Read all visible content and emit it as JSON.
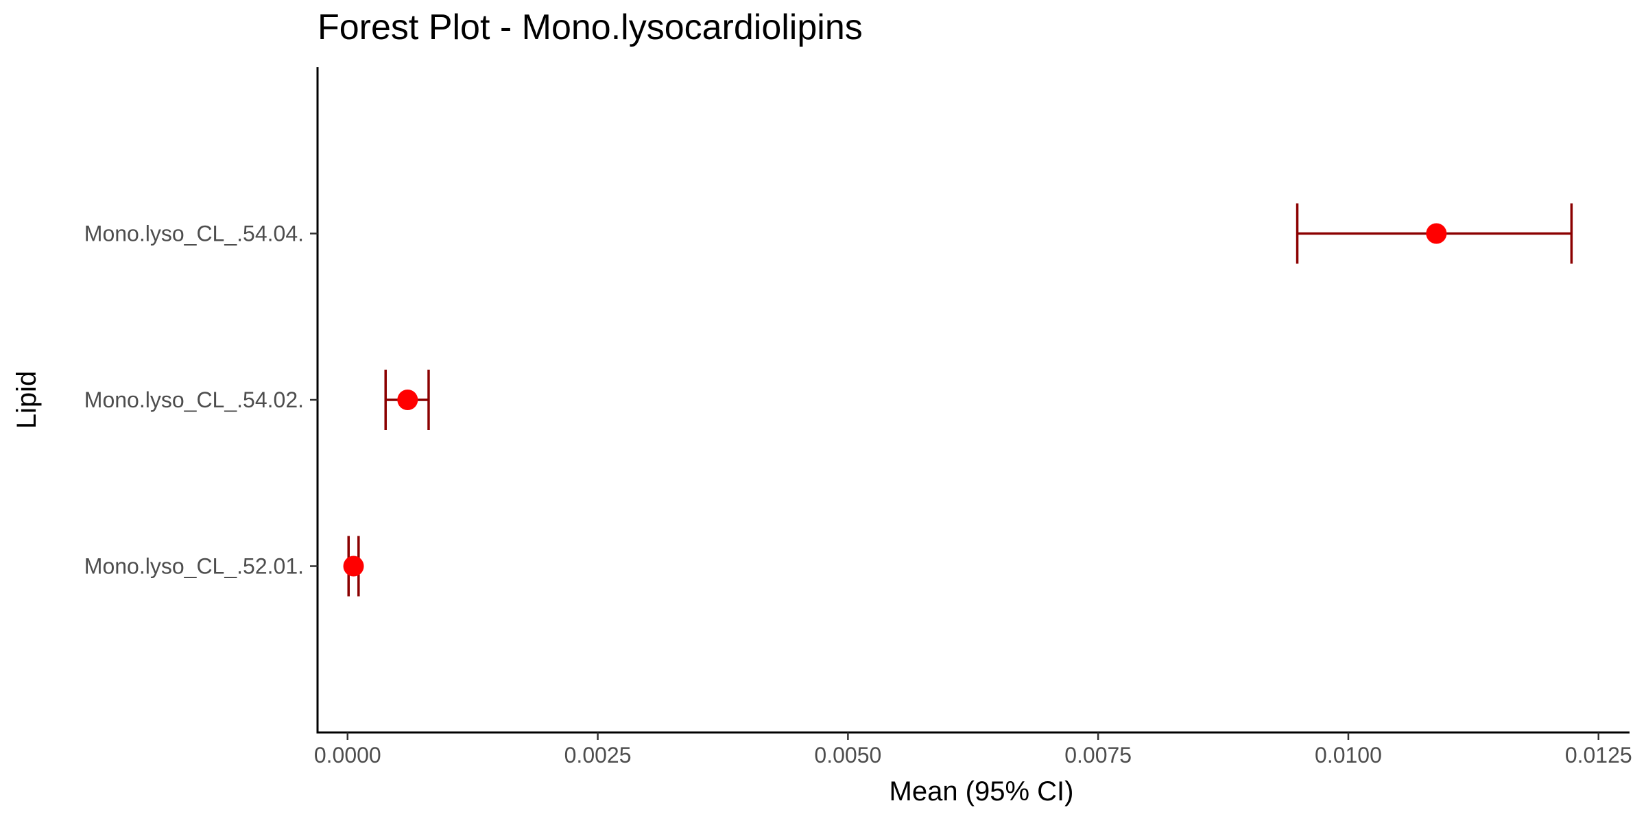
{
  "chart_data": {
    "type": "scatter",
    "subtype": "forest-plot",
    "title": "Forest Plot - Mono.lysocardiolipins",
    "xlabel": "Mean (95% CI)",
    "ylabel": "Lipid",
    "xlim": [
      -0.0003,
      0.01281
    ],
    "x_ticks": [
      0.0,
      0.0025,
      0.005,
      0.0075,
      0.01,
      0.0125
    ],
    "x_tick_labels": [
      "0.0000",
      "0.0025",
      "0.0050",
      "0.0075",
      "0.0100",
      "0.0125"
    ],
    "categories": [
      "Mono.lyso_CL_.52.01.",
      "Mono.lyso_CL_.54.02.",
      "Mono.lyso_CL_.54.04."
    ],
    "points": [
      {
        "lipid": "Mono.lyso_CL_.52.01.",
        "mean": 6e-05,
        "ci_low": 1e-05,
        "ci_high": 0.00011
      },
      {
        "lipid": "Mono.lyso_CL_.54.02.",
        "mean": 0.0006,
        "ci_low": 0.00038,
        "ci_high": 0.00081
      },
      {
        "lipid": "Mono.lyso_CL_.54.04.",
        "mean": 0.01088,
        "ci_low": 0.00949,
        "ci_high": 0.01223
      }
    ],
    "point_color": "#ff0000",
    "errorbar_color": "#8b0000",
    "grid": false,
    "legend": "none"
  }
}
